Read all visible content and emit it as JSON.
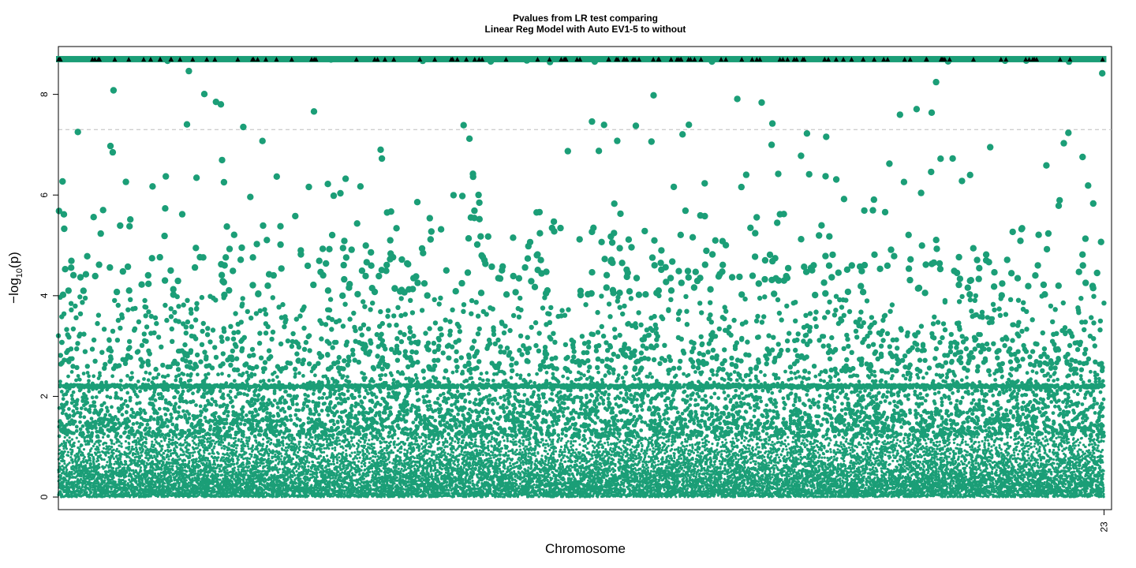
{
  "chart_data": {
    "type": "scatter",
    "title": [
      "Pvalues from LR test comparing",
      "Linear Reg Model with Auto EV1-5 to without"
    ],
    "xlabel": "Chromosome",
    "ylabel": "−log₁₀(p)",
    "ylabel_main": "−log",
    "ylabel_sub": "10",
    "ylabel_tail": "(p)",
    "xlim": [
      1,
      28000
    ],
    "ylim": [
      -0.25,
      8.95
    ],
    "x_ticks": [
      {
        "value": 27800,
        "label": "23"
      }
    ],
    "y_ticks": [
      {
        "value": 0,
        "label": "0"
      },
      {
        "value": 2,
        "label": "2"
      },
      {
        "value": 4,
        "label": "4"
      },
      {
        "value": 6,
        "label": "6"
      },
      {
        "value": 8,
        "label": "8"
      }
    ],
    "threshold_line": {
      "value": 7.3,
      "style": "dashed",
      "color": "#bebebe"
    },
    "cap_value": 8.7,
    "point_color": "#1b9e77",
    "cap_marker_color": "#000000",
    "grid": false,
    "series": [
      {
        "description_key": "snps",
        "n_points": 26000,
        "x_range": [
          1,
          27800
        ],
        "secondary_band_y": 2.2
      }
    ]
  }
}
